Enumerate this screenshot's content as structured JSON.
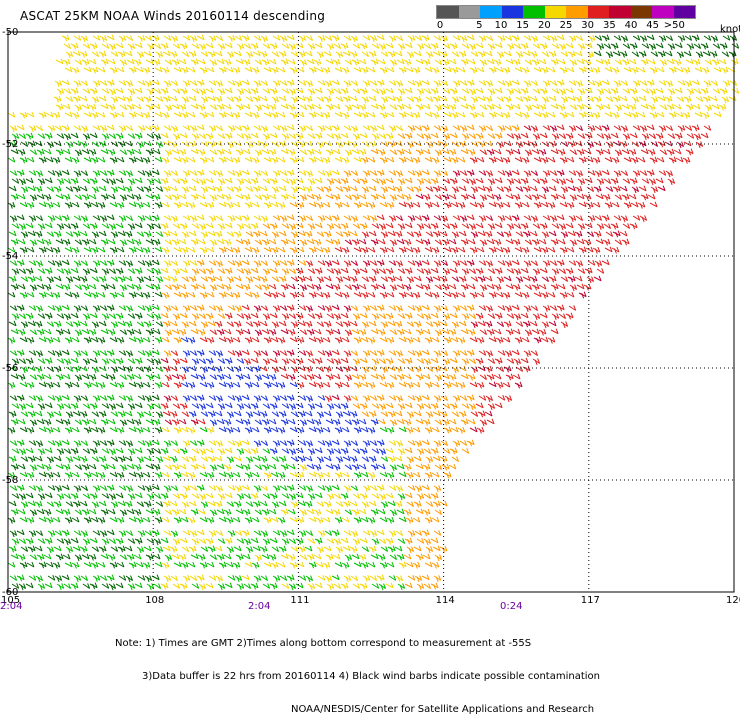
{
  "title": "ASCAT 25KM NOAA Winds 20160114 descending",
  "legend": {
    "colors": [
      "#555555",
      "#9a9a9a",
      "#00a0ff",
      "#1a34e0",
      "#00c000",
      "#f5d800",
      "#ff9c00",
      "#e02020",
      "#c00030",
      "#7a3800",
      "#c000c0",
      "#6000a0"
    ],
    "labels": [
      "0",
      "5",
      "10",
      "15",
      "20",
      "25",
      "30",
      "35",
      "40",
      "45",
      ">50"
    ],
    "units": "knots"
  },
  "axes": {
    "lat_labels": [
      "-50",
      "-52",
      "-54",
      "-56",
      "-58",
      "-60"
    ],
    "lon_labels": [
      "105",
      "108",
      "111",
      "114",
      "117",
      "120"
    ],
    "time_labels": [
      "2:04",
      "2:04",
      "0:24"
    ]
  },
  "notes": {
    "line1": "Note: 1) Times are GMT 2)Times along bottom correspond to measurement at -55S",
    "line2": "3)Data buffer is 22 hrs from 20160114 4) Black wind barbs indicate possible contamination",
    "line3": "NOAA/NESDIS/Center for Satellite Applications and Research"
  }
}
